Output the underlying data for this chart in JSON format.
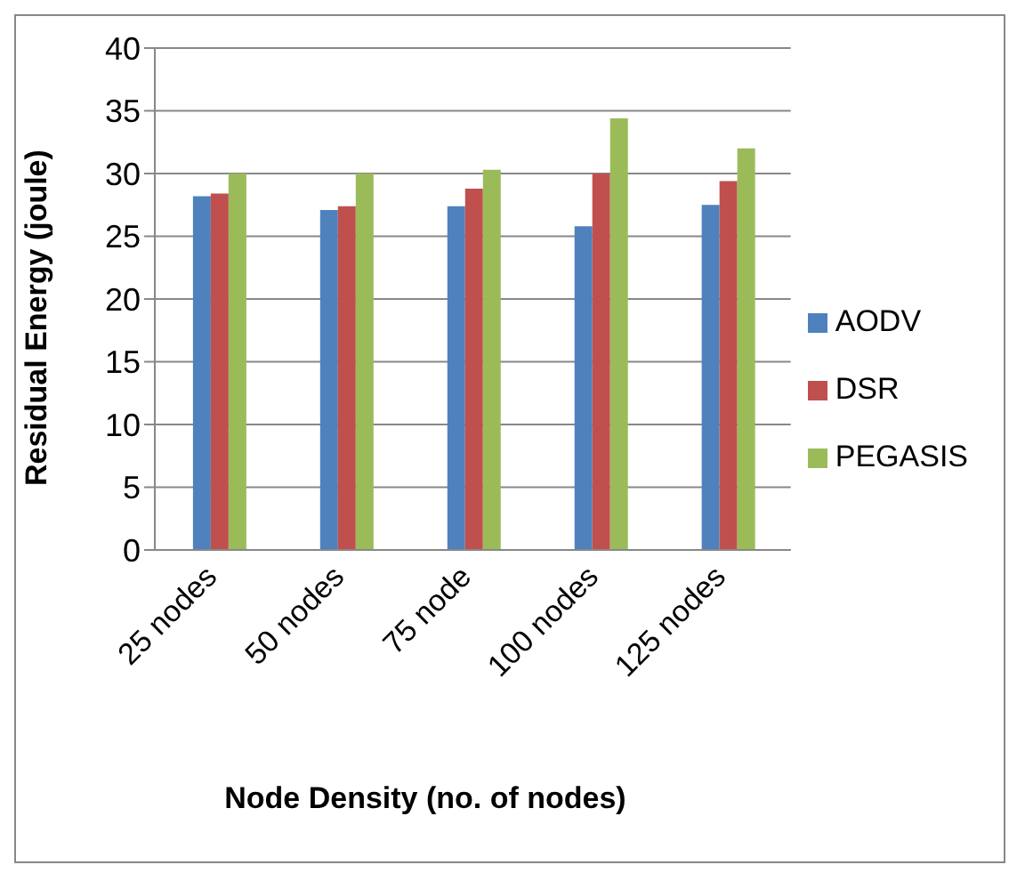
{
  "chart_data": {
    "type": "bar",
    "xlabel": "Node Density (no. of nodes)",
    "ylabel": "Residual Energy (joule)",
    "categories": [
      "25 nodes",
      "50 nodes",
      "75 node",
      "100 nodes",
      "125 nodes"
    ],
    "series": [
      {
        "name": "AODV",
        "color": "#4f81bd",
        "values": [
          28.2,
          27.1,
          27.4,
          25.8,
          27.5
        ]
      },
      {
        "name": "DSR",
        "color": "#c0504d",
        "values": [
          28.4,
          27.4,
          28.8,
          30,
          29.4
        ]
      },
      {
        "name": "PEGASIS",
        "color": "#9bbb59",
        "values": [
          30,
          30,
          30.3,
          34.4,
          32
        ]
      }
    ],
    "ylim": [
      0,
      40
    ],
    "yticks": [
      0,
      5,
      10,
      15,
      20,
      25,
      30,
      35,
      40
    ],
    "grid": "y",
    "legend": "right"
  }
}
